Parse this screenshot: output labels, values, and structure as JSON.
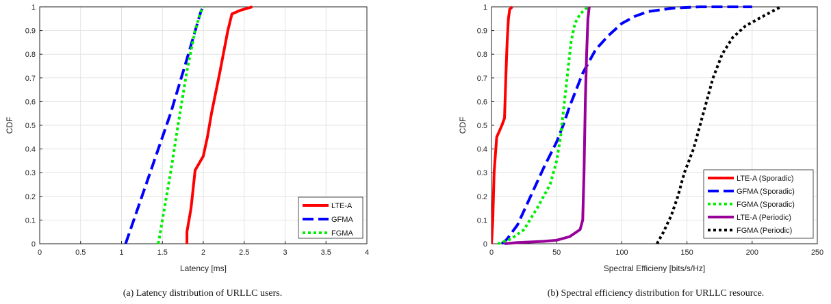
{
  "chart_data": [
    {
      "type": "line",
      "caption": "(a) Latency distribution of URLLC users.",
      "xlabel": "Latency [ms]",
      "ylabel": "CDF",
      "xlim": [
        0,
        4
      ],
      "ylim": [
        0,
        1
      ],
      "xticks": [
        "0",
        "0.5",
        "1",
        "1.5",
        "2",
        "2.5",
        "3",
        "3.5",
        "4"
      ],
      "yticks": [
        "0",
        "0.1",
        "0.2",
        "0.3",
        "0.4",
        "0.5",
        "0.6",
        "0.7",
        "0.8",
        "0.9",
        "1"
      ],
      "grid": true,
      "legend_position": "bottom-right",
      "series": [
        {
          "name": "LTE-A",
          "color": "#ff0000",
          "dash": "solid",
          "points": [
            [
              1.8,
              0
            ],
            [
              1.8,
              0.05
            ],
            [
              1.85,
              0.15
            ],
            [
              1.9,
              0.31
            ],
            [
              1.95,
              0.34
            ],
            [
              2.0,
              0.37
            ],
            [
              2.05,
              0.45
            ],
            [
              2.1,
              0.55
            ],
            [
              2.2,
              0.72
            ],
            [
              2.3,
              0.9
            ],
            [
              2.35,
              0.97
            ],
            [
              2.45,
              0.985
            ],
            [
              2.6,
              1.0
            ]
          ]
        },
        {
          "name": "GFMA",
          "color": "#0000ff",
          "dash": "dashed",
          "points": [
            [
              1.05,
              0
            ],
            [
              1.2,
              0.15
            ],
            [
              1.4,
              0.35
            ],
            [
              1.6,
              0.55
            ],
            [
              1.8,
              0.78
            ],
            [
              1.97,
              0.98
            ],
            [
              2.0,
              1.0
            ]
          ]
        },
        {
          "name": "FGMA",
          "color": "#00ee00",
          "dash": "dotted",
          "points": [
            [
              1.45,
              0
            ],
            [
              1.5,
              0.1
            ],
            [
              1.6,
              0.3
            ],
            [
              1.7,
              0.52
            ],
            [
              1.8,
              0.73
            ],
            [
              1.9,
              0.9
            ],
            [
              1.97,
              0.98
            ],
            [
              2.0,
              1.0
            ]
          ]
        }
      ]
    },
    {
      "type": "line",
      "caption": "(b) Spectral efficiency distribution for URLLC resource.",
      "xlabel": "Spectral Efficieny [bits/s/Hz]",
      "ylabel": "CDF",
      "xlim": [
        0,
        250
      ],
      "ylim": [
        0,
        1
      ],
      "xticks": [
        "0",
        "50",
        "100",
        "150",
        "200",
        "250"
      ],
      "yticks": [
        "0",
        "0.1",
        "0.2",
        "0.3",
        "0.4",
        "0.5",
        "0.6",
        "0.7",
        "0.8",
        "0.9",
        "1"
      ],
      "grid": true,
      "legend_position": "bottom-right",
      "series": [
        {
          "name": "LTE-A (Sporadic)",
          "color": "#ff0000",
          "dash": "solid",
          "points": [
            [
              0,
              0
            ],
            [
              1,
              0.1
            ],
            [
              2,
              0.3
            ],
            [
              4,
              0.45
            ],
            [
              8,
              0.5
            ],
            [
              10,
              0.53
            ],
            [
              11,
              0.7
            ],
            [
              12,
              0.85
            ],
            [
              13,
              0.95
            ],
            [
              14,
              0.99
            ],
            [
              16,
              1.0
            ]
          ]
        },
        {
          "name": "GFMA (Sporadic)",
          "color": "#0000ff",
          "dash": "dashed",
          "points": [
            [
              8,
              0
            ],
            [
              12,
              0.02
            ],
            [
              20,
              0.08
            ],
            [
              30,
              0.2
            ],
            [
              40,
              0.32
            ],
            [
              50,
              0.43
            ],
            [
              55,
              0.5
            ],
            [
              60,
              0.58
            ],
            [
              70,
              0.72
            ],
            [
              80,
              0.82
            ],
            [
              90,
              0.88
            ],
            [
              100,
              0.93
            ],
            [
              110,
              0.96
            ],
            [
              120,
              0.98
            ],
            [
              140,
              0.995
            ],
            [
              160,
              1.0
            ],
            [
              200,
              1.0
            ]
          ]
        },
        {
          "name": "FGMA (Sporadic)",
          "color": "#00ee00",
          "dash": "dotted",
          "points": [
            [
              5,
              0
            ],
            [
              15,
              0.02
            ],
            [
              25,
              0.06
            ],
            [
              35,
              0.15
            ],
            [
              45,
              0.25
            ],
            [
              50,
              0.35
            ],
            [
              53,
              0.45
            ],
            [
              55,
              0.55
            ],
            [
              58,
              0.7
            ],
            [
              61,
              0.85
            ],
            [
              64,
              0.93
            ],
            [
              68,
              0.97
            ],
            [
              72,
              0.99
            ],
            [
              75,
              1.0
            ]
          ]
        },
        {
          "name": "LTE-A (Periodic)",
          "color": "#990099",
          "dash": "solid",
          "points": [
            [
              10,
              0
            ],
            [
              20,
              0.005
            ],
            [
              40,
              0.01
            ],
            [
              50,
              0.015
            ],
            [
              60,
              0.03
            ],
            [
              68,
              0.06
            ],
            [
              70,
              0.1
            ],
            [
              71,
              0.3
            ],
            [
              72,
              0.6
            ],
            [
              73,
              0.8
            ],
            [
              74,
              0.95
            ],
            [
              75,
              1.0
            ]
          ]
        },
        {
          "name": "FGMA (Periodic)",
          "color": "#000000",
          "dash": "dotted",
          "points": [
            [
              127,
              0
            ],
            [
              132,
              0.05
            ],
            [
              138,
              0.12
            ],
            [
              143,
              0.2
            ],
            [
              148,
              0.3
            ],
            [
              155,
              0.4
            ],
            [
              160,
              0.5
            ],
            [
              165,
              0.6
            ],
            [
              170,
              0.7
            ],
            [
              177,
              0.8
            ],
            [
              185,
              0.87
            ],
            [
              195,
              0.92
            ],
            [
              205,
              0.95
            ],
            [
              215,
              0.98
            ],
            [
              222,
              1.0
            ]
          ]
        }
      ]
    }
  ]
}
